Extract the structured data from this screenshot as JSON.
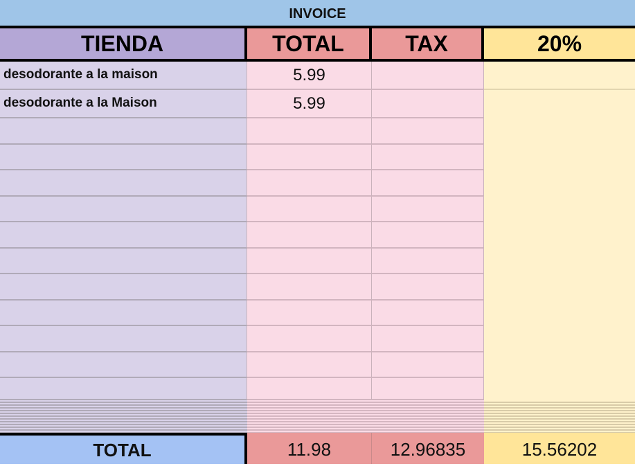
{
  "title": "INVOICE",
  "headers": {
    "store": "TIENDA",
    "total": "TOTAL",
    "tax": "TAX",
    "rate": "20%"
  },
  "items": [
    {
      "name": "desodorante a la maison",
      "total": "5.99",
      "tax": "",
      "rate": ""
    },
    {
      "name": "desodorante a la Maison",
      "total": "5.99",
      "tax": "",
      "rate": ""
    }
  ],
  "footer": {
    "label": "TOTAL",
    "total": "11.98",
    "tax": "12.96835",
    "rate": "15.56202"
  },
  "colors": {
    "title_bg": "#9fc5e8",
    "store_header": "#b4a7d6",
    "total_header": "#ea9999",
    "rate_header": "#ffe599",
    "footer_label_bg": "#a4c2f4"
  }
}
